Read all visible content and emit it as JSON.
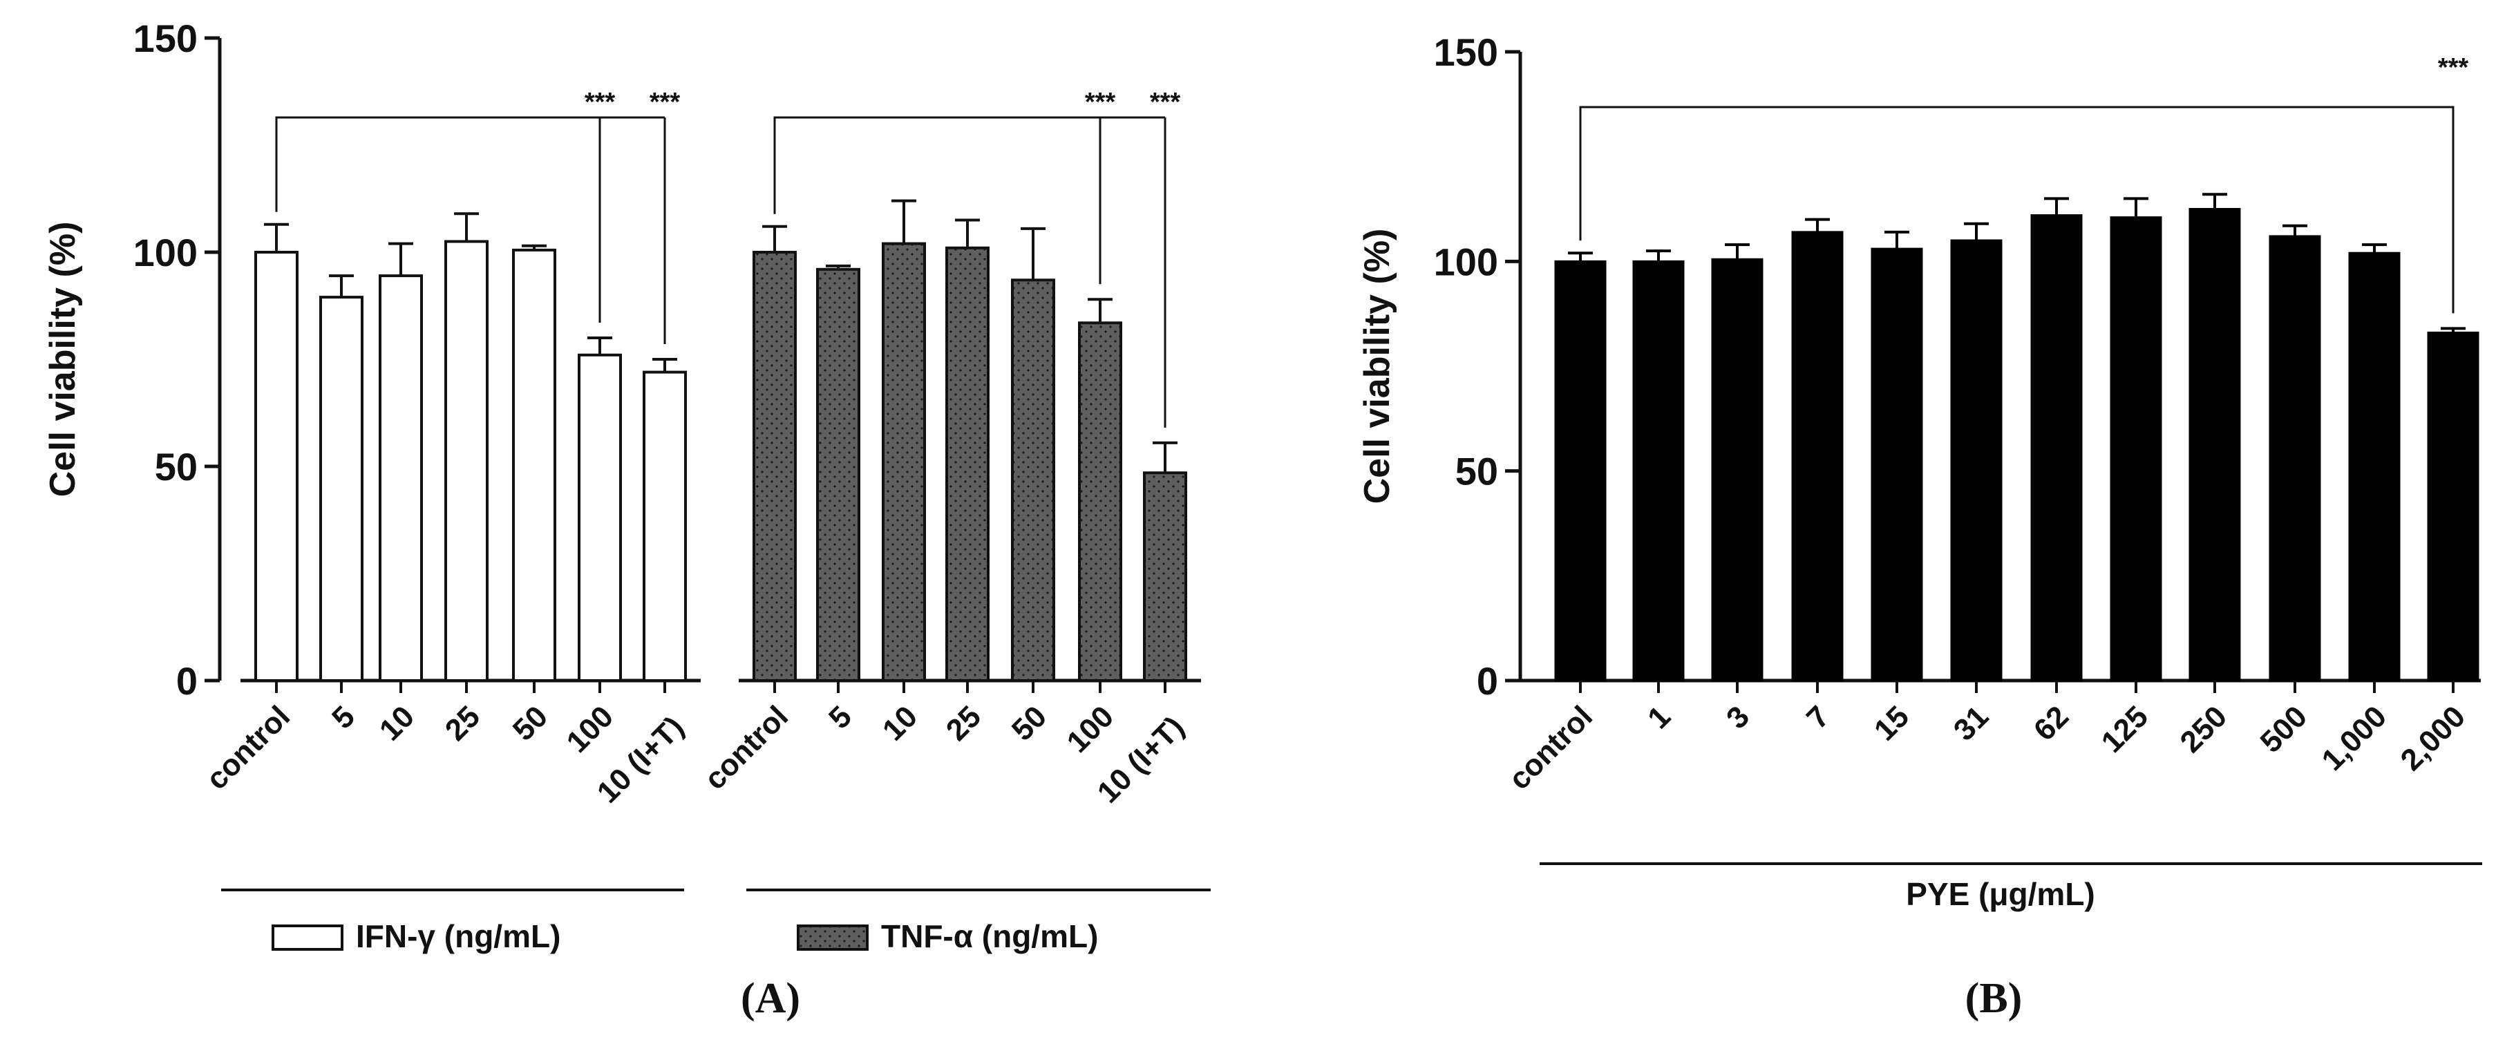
{
  "chart_data": [
    {
      "type": "bar",
      "panel_label": "(A)",
      "ylabel": "Cell viability (%)",
      "ylim": [
        0,
        150
      ],
      "yticks": [
        0,
        50,
        100,
        150
      ],
      "fill_pattern_legend": [
        "open",
        "dotted gray"
      ],
      "groups": [
        {
          "name": "IFN-γ",
          "legend_label": "IFN-γ  (ng/mL)",
          "categories": [
            "control",
            "5",
            "10",
            "25",
            "50",
            "100",
            "10 (I+T)"
          ],
          "values": [
            100,
            89.5,
            94.5,
            102.5,
            100.5,
            76,
            72
          ],
          "errors": [
            6.5,
            5,
            7.5,
            6.5,
            1,
            4,
            3
          ],
          "significance": [
            {
              "from": "control",
              "to": "100",
              "label": "***"
            },
            {
              "from": "control",
              "to": "10 (I+T)",
              "label": "***"
            }
          ]
        },
        {
          "name": "TNF-α",
          "legend_label": "TNF-α (ng/mL)",
          "categories": [
            "control",
            "5",
            "10",
            "25",
            "50",
            "100",
            "10 (I+T)"
          ],
          "values": [
            100,
            96,
            102,
            101,
            93.5,
            83.5,
            48.5
          ],
          "errors": [
            6,
            0.8,
            10,
            6.5,
            12,
            5.5,
            7
          ],
          "significance": [
            {
              "from": "control",
              "to": "100",
              "label": "***"
            },
            {
              "from": "control",
              "to": "10 (I+T)",
              "label": "***"
            }
          ]
        }
      ]
    },
    {
      "type": "bar",
      "panel_label": "(B)",
      "ylabel": "Cell viability (%)",
      "xlabel": "PYE (μg/mL)",
      "ylim": [
        0,
        150
      ],
      "yticks": [
        0,
        50,
        100,
        150
      ],
      "categories": [
        "control",
        "1",
        "3",
        "7",
        "15",
        "31",
        "62",
        "125",
        "250",
        "500",
        "1,000",
        "2,000"
      ],
      "values": [
        100,
        100,
        100.5,
        107,
        103,
        105,
        111,
        110.5,
        112.5,
        106,
        102,
        83
      ],
      "errors": [
        2,
        2.5,
        3.5,
        3,
        4,
        4,
        4,
        4.5,
        3.5,
        2.5,
        2,
        1
      ],
      "significance": [
        {
          "from": "control",
          "to": "2,000",
          "label": "***"
        }
      ]
    }
  ]
}
